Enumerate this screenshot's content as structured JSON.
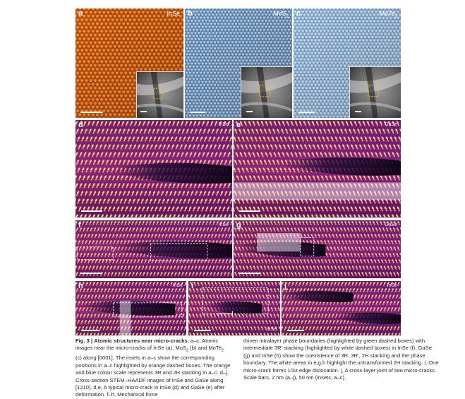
{
  "panels": {
    "a": {
      "label": "a",
      "name": "InSe"
    },
    "b": {
      "label": "b",
      "name": "MoS2"
    },
    "c": {
      "label": "c",
      "name": "MoTe2"
    },
    "d": {
      "label": "d",
      "name": "InSe"
    },
    "e": {
      "label": "e",
      "name": "GaSe"
    },
    "f": {
      "label": "f",
      "name": "InSe"
    },
    "g": {
      "label": "g",
      "name": "GaSe"
    },
    "h": {
      "label": "h",
      "name": "InSe"
    },
    "i": {
      "label": "i",
      "name": "InSe"
    },
    "j": {
      "label": "j",
      "name": "InSe"
    }
  },
  "colors": {
    "insE_orange": "#d2661a",
    "mos2_blue": "#7fa6cf",
    "mote2_blue": "#9cc0e0",
    "inset_box": "#ffb000",
    "dashed_white": "#ffffff",
    "dashed_green": "#5be86a"
  },
  "caption": {
    "fig": "Fig. 3 |",
    "title": "Atomic structures near micro-cracks.",
    "left_1": "a–c, Atomic images near the micro-cracks of InSe (a), MoS",
    "left_1b": " (b) and MoTe",
    "left_1c": " (c) along [0001]. The insets in a–c show the corresponding positions in a–c highlighted by orange dashed boxes. The orange and blue colour scale represents 3R and 2H stacking in a–c. d–j, Cross-section STEM–HAADF images of InSe and GaSe along [1210]. d,e, A typical micro-crack in InSe (d) and GaSe (e) after deformation. f–h, Mechanical force",
    "right": "driven intralayer phase boundaries (highlighted by green dashed boxes) with intermediate 3R′ stacking (highlighted by white dashed boxes) in InSe (f). GaSe (g) and InSe (h) show the coexistence of 3R, 3R′, 2H stacking and the phase boundary. The white areas in e,g,h highlight the untransformed 2H stacking. i, One micro-crack forms 1/3z edge dislocation. j, A cross-layer joint of two micro-cracks. Scale bars, 2 nm (a–j), 50 nm (insets, a–c)."
  }
}
